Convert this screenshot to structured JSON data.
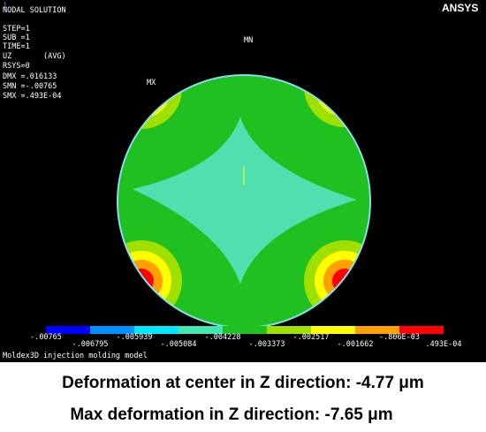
{
  "window": {
    "id": "1",
    "logo": "ANSYS"
  },
  "info": [
    "NODAL SOLUTION",
    "STEP=1",
    "SUB =1",
    "TIME=1",
    "UZ       (AVG)",
    "RSYS=0",
    "DMX =.016133",
    "SMN =-.00765",
    "SMX =.493E-04"
  ],
  "plot": {
    "min_label": "MN",
    "max_label": "MX"
  },
  "legend": {
    "labels": [
      "-.00765",
      "-.006795",
      "-.005939",
      "-.005084",
      "-.004228",
      "-.003373",
      "-.002517",
      "-.001662",
      "-.806E-03",
      ".493E-04"
    ],
    "colors": [
      "#0000ff",
      "#0090ff",
      "#00e8ff",
      "#40e8b0",
      "#20c020",
      "#a0e000",
      "#ffff00",
      "#ffa000",
      "#ff0000"
    ]
  },
  "footer": "Moldex3D injection molding model",
  "captions": [
    "Deformation at center in Z direction: -4.77 μm",
    "Max deformation in Z direction: -7.65 μm"
  ]
}
